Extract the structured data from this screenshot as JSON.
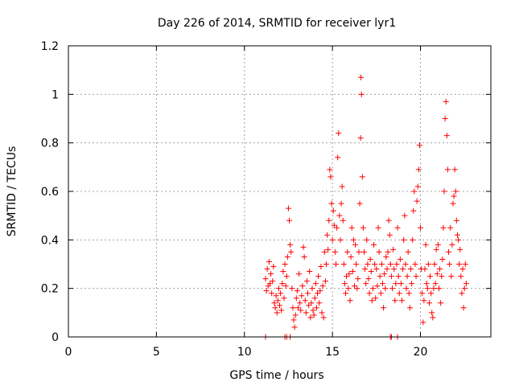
{
  "chart_data": {
    "type": "scatter",
    "title": "Day 226 of 2014, SRMTID for receiver lyr1",
    "xlabel": "GPS time / hours",
    "ylabel": "SRMTID / TECUs",
    "xlim": [
      0,
      24
    ],
    "ylim": [
      0,
      1.2
    ],
    "xticks": [
      0,
      5,
      10,
      15,
      20
    ],
    "yticks": [
      0,
      0.2,
      0.4,
      0.6,
      0.8,
      1,
      1.2
    ],
    "ytick_labels": [
      "0",
      "0.2",
      "0.4",
      "0.6",
      "0.8",
      "1",
      "1.2"
    ],
    "grid": true,
    "marker": "+",
    "color": "#ff0000",
    "series": [
      {
        "name": "SRMTID",
        "points": [
          [
            11.2,
            0.24
          ],
          [
            11.25,
            0.19
          ],
          [
            11.3,
            0.28
          ],
          [
            11.35,
            0.21
          ],
          [
            11.4,
            0.31
          ],
          [
            11.45,
            0.22
          ],
          [
            11.5,
            0.26
          ],
          [
            11.55,
            0.18
          ],
          [
            11.6,
            0.23
          ],
          [
            11.65,
            0.29
          ],
          [
            11.7,
            0.14
          ],
          [
            11.75,
            0.12
          ],
          [
            11.8,
            0.17
          ],
          [
            11.85,
            0.1
          ],
          [
            11.9,
            0.15
          ],
          [
            11.95,
            0.2
          ],
          [
            12.0,
            0.13
          ],
          [
            12.05,
            0.18
          ],
          [
            12.1,
            0.11
          ],
          [
            12.15,
            0.22
          ],
          [
            12.2,
            0.27
          ],
          [
            12.25,
            0.16
          ],
          [
            12.3,
            0.3
          ],
          [
            12.35,
            0.21
          ],
          [
            12.4,
            0.25
          ],
          [
            12.45,
            0.33
          ],
          [
            12.5,
            0.53
          ],
          [
            12.55,
            0.48
          ],
          [
            12.6,
            0.38
          ],
          [
            12.65,
            0.35
          ],
          [
            12.7,
            0.2
          ],
          [
            12.75,
            0.12
          ],
          [
            12.8,
            0.07
          ],
          [
            12.85,
            0.04
          ],
          [
            12.9,
            0.09
          ],
          [
            12.95,
            0.16
          ],
          [
            13.0,
            0.19
          ],
          [
            13.05,
            0.12
          ],
          [
            13.1,
            0.26
          ],
          [
            13.15,
            0.14
          ],
          [
            13.2,
            0.11
          ],
          [
            13.25,
            0.17
          ],
          [
            13.3,
            0.21
          ],
          [
            13.35,
            0.37
          ],
          [
            13.4,
            0.33
          ],
          [
            13.45,
            0.15
          ],
          [
            13.5,
            0.1
          ],
          [
            13.55,
            0.23
          ],
          [
            13.6,
            0.18
          ],
          [
            13.65,
            0.13
          ],
          [
            13.7,
            0.27
          ],
          [
            13.75,
            0.08
          ],
          [
            13.8,
            0.14
          ],
          [
            13.85,
            0.2
          ],
          [
            13.9,
            0.11
          ],
          [
            13.95,
            0.09
          ],
          [
            14.0,
            0.16
          ],
          [
            14.05,
            0.22
          ],
          [
            14.1,
            0.12
          ],
          [
            14.15,
            0.18
          ],
          [
            14.2,
            0.25
          ],
          [
            14.25,
            0.14
          ],
          [
            14.3,
            0.19
          ],
          [
            14.35,
            0.29
          ],
          [
            14.4,
            0.1
          ],
          [
            14.45,
            0.21
          ],
          [
            14.5,
            0.08
          ],
          [
            14.55,
            0.35
          ],
          [
            14.6,
            0.23
          ],
          [
            14.65,
            0.3
          ],
          [
            14.7,
            0.42
          ],
          [
            14.75,
            0.36
          ],
          [
            14.8,
            0.48
          ],
          [
            14.85,
            0.69
          ],
          [
            14.9,
            0.66
          ],
          [
            14.95,
            0.55
          ],
          [
            15.0,
            0.4
          ],
          [
            15.05,
            0.52
          ],
          [
            15.1,
            0.46
          ],
          [
            15.15,
            0.35
          ],
          [
            15.2,
            0.3
          ],
          [
            15.25,
            0.45
          ],
          [
            15.3,
            0.74
          ],
          [
            15.35,
            0.84
          ],
          [
            15.4,
            0.5
          ],
          [
            15.45,
            0.4
          ],
          [
            15.5,
            0.55
          ],
          [
            15.55,
            0.62
          ],
          [
            15.6,
            0.48
          ],
          [
            15.65,
            0.3
          ],
          [
            15.7,
            0.22
          ],
          [
            15.75,
            0.18
          ],
          [
            15.8,
            0.25
          ],
          [
            15.85,
            0.35
          ],
          [
            15.9,
            0.2
          ],
          [
            15.95,
            0.26
          ],
          [
            16.0,
            0.15
          ],
          [
            16.05,
            0.33
          ],
          [
            16.1,
            0.45
          ],
          [
            16.15,
            0.27
          ],
          [
            16.2,
            0.4
          ],
          [
            16.25,
            0.21
          ],
          [
            16.3,
            0.38
          ],
          [
            16.35,
            0.3
          ],
          [
            16.4,
            0.2
          ],
          [
            16.45,
            0.24
          ],
          [
            16.5,
            0.35
          ],
          [
            16.55,
            0.55
          ],
          [
            16.6,
            0.82
          ],
          [
            16.62,
            1.07
          ],
          [
            16.65,
            1.0
          ],
          [
            16.7,
            0.66
          ],
          [
            16.75,
            0.45
          ],
          [
            16.8,
            0.35
          ],
          [
            16.85,
            0.28
          ],
          [
            16.9,
            0.22
          ],
          [
            16.95,
            0.4
          ],
          [
            17.0,
            0.3
          ],
          [
            17.05,
            0.24
          ],
          [
            17.1,
            0.18
          ],
          [
            17.15,
            0.32
          ],
          [
            17.2,
            0.27
          ],
          [
            17.25,
            0.15
          ],
          [
            17.3,
            0.2
          ],
          [
            17.35,
            0.38
          ],
          [
            17.4,
            0.3
          ],
          [
            17.45,
            0.16
          ],
          [
            17.5,
            0.28
          ],
          [
            17.55,
            0.21
          ],
          [
            17.6,
            0.45
          ],
          [
            17.65,
            0.35
          ],
          [
            17.7,
            0.25
          ],
          [
            17.75,
            0.18
          ],
          [
            17.8,
            0.3
          ],
          [
            17.85,
            0.22
          ],
          [
            17.9,
            0.12
          ],
          [
            17.95,
            0.26
          ],
          [
            18.0,
            0.2
          ],
          [
            18.05,
            0.33
          ],
          [
            18.1,
            0.28
          ],
          [
            18.15,
            0.35
          ],
          [
            18.2,
            0.48
          ],
          [
            18.25,
            0.42
          ],
          [
            18.3,
            0.3
          ],
          [
            18.35,
            0.25
          ],
          [
            18.4,
            0.2
          ],
          [
            18.45,
            0.36
          ],
          [
            18.5,
            0.28
          ],
          [
            18.55,
            0.15
          ],
          [
            18.6,
            0.22
          ],
          [
            18.65,
            0.3
          ],
          [
            18.7,
            0.45
          ],
          [
            18.75,
            0.25
          ],
          [
            18.8,
            0.18
          ],
          [
            18.85,
            0.32
          ],
          [
            18.9,
            0.22
          ],
          [
            18.95,
            0.15
          ],
          [
            19.0,
            0.28
          ],
          [
            19.05,
            0.4
          ],
          [
            19.1,
            0.5
          ],
          [
            19.15,
            0.3
          ],
          [
            19.2,
            0.2
          ],
          [
            19.25,
            0.25
          ],
          [
            19.3,
            0.35
          ],
          [
            19.35,
            0.18
          ],
          [
            19.4,
            0.12
          ],
          [
            19.45,
            0.28
          ],
          [
            19.5,
            0.22
          ],
          [
            19.55,
            0.4
          ],
          [
            19.6,
            0.52
          ],
          [
            19.65,
            0.6
          ],
          [
            19.7,
            0.3
          ],
          [
            19.75,
            0.25
          ],
          [
            19.8,
            0.56
          ],
          [
            19.85,
            0.62
          ],
          [
            19.9,
            0.69
          ],
          [
            19.95,
            0.79
          ],
          [
            20.0,
            0.45
          ],
          [
            20.05,
            0.28
          ],
          [
            20.1,
            0.18
          ],
          [
            20.15,
            0.06
          ],
          [
            20.2,
            0.15
          ],
          [
            20.25,
            0.28
          ],
          [
            20.3,
            0.38
          ],
          [
            20.35,
            0.22
          ],
          [
            20.4,
            0.2
          ],
          [
            20.45,
            0.3
          ],
          [
            20.5,
            0.14
          ],
          [
            20.55,
            0.25
          ],
          [
            20.6,
            0.18
          ],
          [
            20.65,
            0.1
          ],
          [
            20.7,
            0.08
          ],
          [
            20.75,
            0.2
          ],
          [
            20.8,
            0.3
          ],
          [
            20.85,
            0.22
          ],
          [
            20.9,
            0.36
          ],
          [
            20.95,
            0.26
          ],
          [
            21.0,
            0.38
          ],
          [
            21.05,
            0.2
          ],
          [
            21.1,
            0.28
          ],
          [
            21.15,
            0.14
          ],
          [
            21.2,
            0.25
          ],
          [
            21.25,
            0.32
          ],
          [
            21.3,
            0.45
          ],
          [
            21.35,
            0.6
          ],
          [
            21.4,
            0.9
          ],
          [
            21.45,
            0.97
          ],
          [
            21.5,
            0.83
          ],
          [
            21.55,
            0.69
          ],
          [
            21.6,
            0.35
          ],
          [
            21.65,
            0.3
          ],
          [
            21.7,
            0.45
          ],
          [
            21.75,
            0.25
          ],
          [
            21.8,
            0.38
          ],
          [
            21.85,
            0.55
          ],
          [
            21.9,
            0.58
          ],
          [
            21.95,
            0.69
          ],
          [
            22.0,
            0.6
          ],
          [
            22.05,
            0.48
          ],
          [
            22.1,
            0.42
          ],
          [
            22.15,
            0.4
          ],
          [
            22.2,
            0.3
          ],
          [
            22.25,
            0.36
          ],
          [
            22.3,
            0.25
          ],
          [
            22.35,
            0.18
          ],
          [
            22.4,
            0.28
          ],
          [
            22.45,
            0.12
          ],
          [
            22.5,
            0.2
          ],
          [
            22.55,
            0.3
          ],
          [
            22.6,
            0.22
          ]
        ]
      }
    ],
    "zero_points": [
      11.2,
      12.3,
      12.4,
      12.6,
      18.3,
      18.35,
      18.7
    ]
  }
}
